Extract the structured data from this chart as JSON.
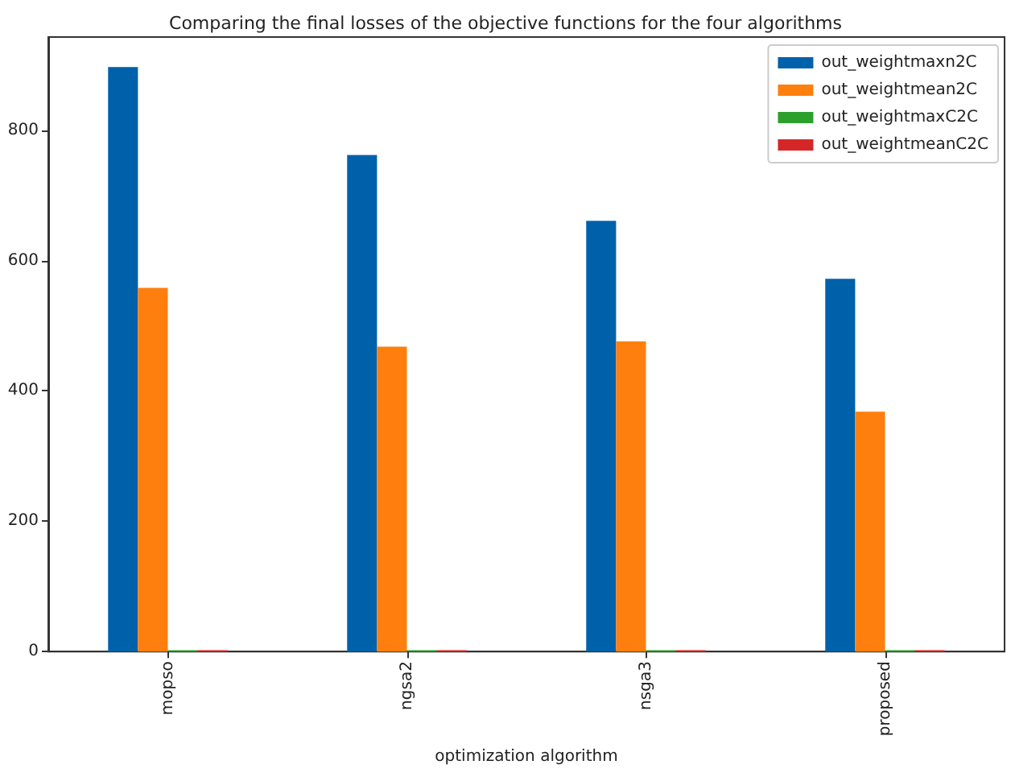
{
  "chart_data": {
    "type": "bar",
    "title": "Comparing the final losses of the objective functions for the four algorithms",
    "xlabel": "optimization algorithm",
    "categories": [
      "mopso",
      "ngsa2",
      "nsga3",
      "proposed"
    ],
    "series": [
      {
        "name": "out_weightmaxn2C",
        "color": "#0061ab",
        "values": [
          897,
          762,
          661,
          572
        ]
      },
      {
        "name": "out_weightmean2C",
        "color": "#ff7f0e",
        "values": [
          558,
          468,
          476,
          368
        ]
      },
      {
        "name": "out_weightmaxC2C",
        "color": "#2ca02c",
        "values": [
          2,
          2,
          2,
          2
        ]
      },
      {
        "name": "out_weightmeanC2C",
        "color": "#d62728",
        "values": [
          2,
          2,
          2,
          2
        ]
      }
    ],
    "ylim": [
      0,
      943
    ],
    "yticks": [
      0,
      200,
      400,
      600,
      800
    ],
    "grid": false,
    "legend": "top right"
  }
}
